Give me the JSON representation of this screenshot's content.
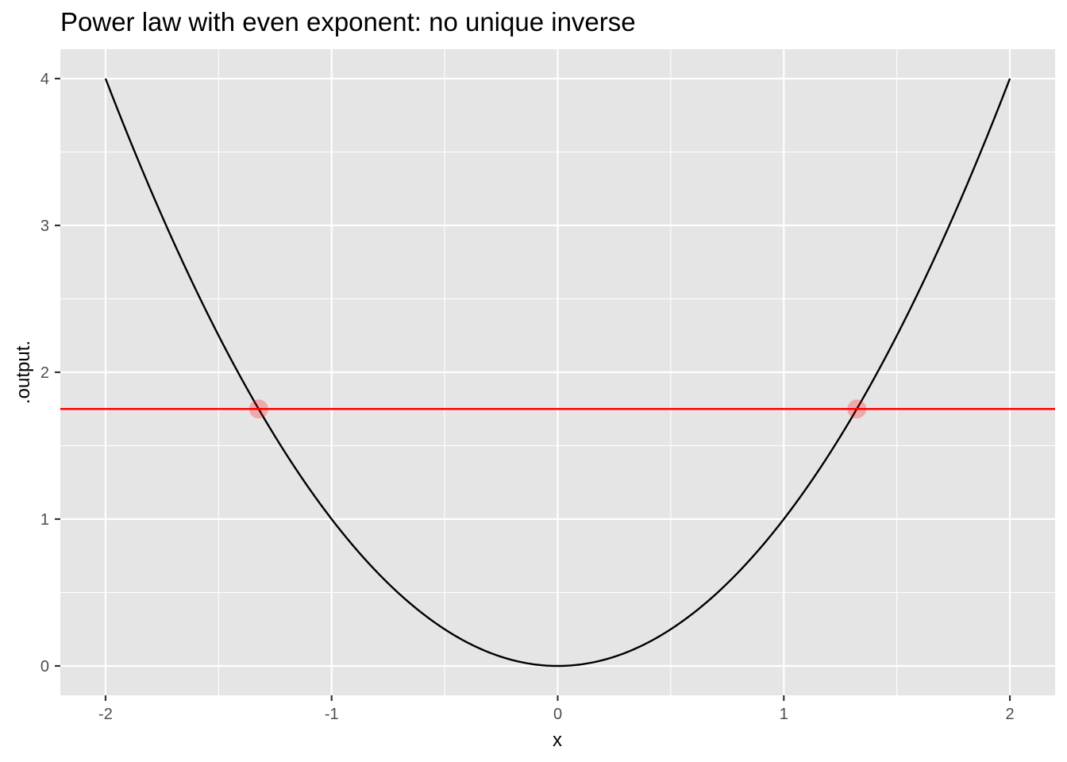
{
  "chart_data": {
    "type": "line",
    "title": "Power law with even exponent: no unique inverse",
    "xlabel": "x",
    "ylabel": ".output.",
    "xlim": [
      -2.2,
      2.2
    ],
    "ylim": [
      -0.2,
      4.2
    ],
    "x_ticks": [
      -2,
      -1,
      0,
      1,
      2
    ],
    "y_ticks": [
      0,
      1,
      2,
      3,
      4
    ],
    "x_tick_labels": [
      "-2",
      "-1",
      "0",
      "1",
      "2"
    ],
    "y_tick_labels": [
      "0",
      "1",
      "2",
      "3",
      "4"
    ],
    "grid": true,
    "series": [
      {
        "function": "x^2",
        "x_range": [
          -2,
          2
        ],
        "color": "#000000"
      }
    ],
    "hline": {
      "y": 1.75,
      "color": "#ff0000"
    },
    "points": [
      {
        "x": -1.3229,
        "y": 1.75,
        "color": "#ff0000",
        "alpha": 0.25
      },
      {
        "x": 1.3229,
        "y": 1.75,
        "color": "#ff0000",
        "alpha": 0.25
      }
    ],
    "panel_background": "#e5e5e5",
    "grid_color": "#ffffff"
  }
}
